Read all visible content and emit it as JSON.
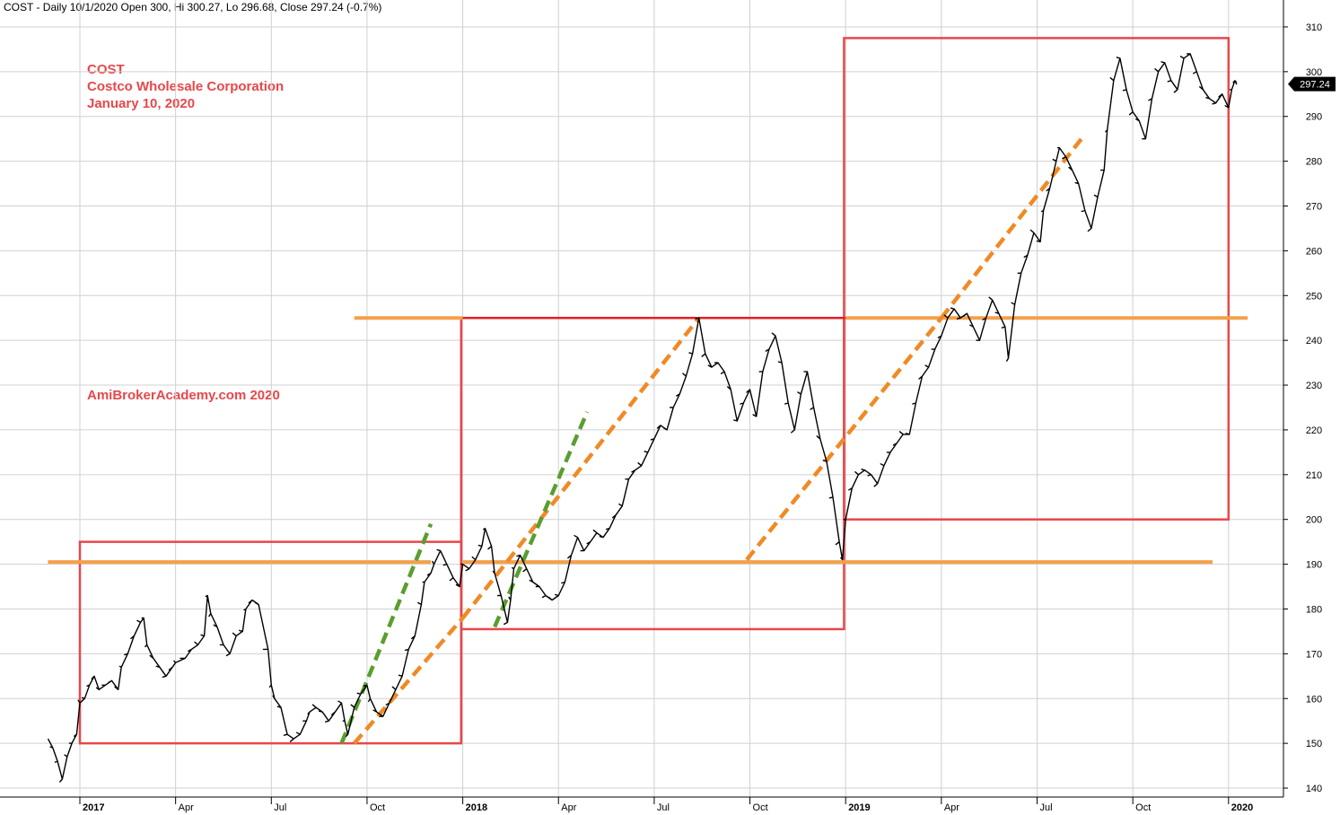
{
  "header": {
    "text": "COST - Daily 10/1/2020 Open 300, Hi 300.27, Lo 296.68, Close 297.24 (-0.7%)"
  },
  "annotations": {
    "ticker": "COST",
    "company": "Costco Wholesale Corporation",
    "date": "January 10, 2020",
    "watermark": "AmiBrokerAcademy.com 2020"
  },
  "colors": {
    "price": "#000000",
    "box": "#e8474a",
    "support_resistance": "#f5a04a",
    "trend_orange": "#f08a24",
    "trend_green": "#5a9e2e",
    "grid": "#d0d0d0",
    "badge": "#000000"
  },
  "chart_data": {
    "type": "line",
    "title": "",
    "xlabel": "",
    "ylabel": "",
    "ylim": [
      138,
      314
    ],
    "xlim": [
      -1.0,
      36.6
    ],
    "y_ticks": [
      140,
      150,
      160,
      170,
      180,
      190,
      200,
      210,
      220,
      230,
      240,
      250,
      260,
      270,
      280,
      290,
      300,
      310
    ],
    "x_ticks": [
      {
        "label": "2017",
        "x": 0,
        "year": true
      },
      {
        "label": "Apr",
        "x": 3,
        "year": false
      },
      {
        "label": "Jul",
        "x": 6,
        "year": false
      },
      {
        "label": "Oct",
        "x": 9,
        "year": false
      },
      {
        "label": "2018",
        "x": 12,
        "year": true
      },
      {
        "label": "Apr",
        "x": 15,
        "year": false
      },
      {
        "label": "Jul",
        "x": 18,
        "year": false
      },
      {
        "label": "Oct",
        "x": 21,
        "year": false
      },
      {
        "label": "2019",
        "x": 24,
        "year": true
      },
      {
        "label": "Apr",
        "x": 27,
        "year": false
      },
      {
        "label": "Jul",
        "x": 30,
        "year": false
      },
      {
        "label": "Oct",
        "x": 33,
        "year": false
      },
      {
        "label": "2020",
        "x": 36,
        "year": true
      }
    ],
    "grid": true,
    "last_price_label": "297.24",
    "last_price": 297.24,
    "series": [
      {
        "name": "",
        "points": [
          [
            -1.0,
            151
          ],
          [
            -0.85,
            149
          ],
          [
            -0.7,
            146
          ],
          [
            -0.55,
            142
          ],
          [
            -0.4,
            147
          ],
          [
            -0.25,
            150
          ],
          [
            -0.1,
            152
          ],
          [
            0.0,
            159
          ],
          [
            0.15,
            160
          ],
          [
            0.3,
            163
          ],
          [
            0.45,
            165
          ],
          [
            0.6,
            162
          ],
          [
            0.8,
            163
          ],
          [
            1.0,
            164
          ],
          [
            1.2,
            162
          ],
          [
            1.3,
            167
          ],
          [
            1.5,
            170
          ],
          [
            1.7,
            174
          ],
          [
            1.9,
            177
          ],
          [
            2.0,
            178
          ],
          [
            2.1,
            172
          ],
          [
            2.3,
            169
          ],
          [
            2.5,
            167
          ],
          [
            2.7,
            165
          ],
          [
            2.9,
            167
          ],
          [
            3.0,
            168
          ],
          [
            3.3,
            169
          ],
          [
            3.5,
            171
          ],
          [
            3.7,
            172
          ],
          [
            3.9,
            174
          ],
          [
            4.0,
            183
          ],
          [
            4.1,
            179
          ],
          [
            4.3,
            176
          ],
          [
            4.5,
            172
          ],
          [
            4.7,
            170
          ],
          [
            4.9,
            174
          ],
          [
            5.1,
            175
          ],
          [
            5.2,
            180
          ],
          [
            5.4,
            182
          ],
          [
            5.6,
            181
          ],
          [
            5.9,
            171
          ],
          [
            6.0,
            163
          ],
          [
            6.1,
            160
          ],
          [
            6.3,
            158
          ],
          [
            6.5,
            152
          ],
          [
            6.7,
            151
          ],
          [
            6.9,
            152
          ],
          [
            7.1,
            155
          ],
          [
            7.2,
            157
          ],
          [
            7.4,
            158
          ],
          [
            7.6,
            157
          ],
          [
            7.8,
            155
          ],
          [
            8.0,
            157
          ],
          [
            8.2,
            159
          ],
          [
            8.3,
            155
          ],
          [
            8.4,
            152
          ],
          [
            8.6,
            158
          ],
          [
            8.8,
            161
          ],
          [
            9.0,
            163
          ],
          [
            9.1,
            160
          ],
          [
            9.3,
            157
          ],
          [
            9.5,
            156
          ],
          [
            9.7,
            159
          ],
          [
            9.9,
            162
          ],
          [
            10.1,
            165
          ],
          [
            10.3,
            171
          ],
          [
            10.5,
            174
          ],
          [
            10.7,
            181
          ],
          [
            10.8,
            186
          ],
          [
            11.0,
            188
          ],
          [
            11.1,
            190
          ],
          [
            11.3,
            193
          ],
          [
            11.5,
            190
          ],
          [
            11.7,
            187
          ],
          [
            11.9,
            185
          ],
          [
            12.0,
            190
          ],
          [
            12.2,
            189
          ],
          [
            12.4,
            191
          ],
          [
            12.6,
            194
          ],
          [
            12.7,
            198
          ],
          [
            12.9,
            194
          ],
          [
            13.0,
            188
          ],
          [
            13.2,
            183
          ],
          [
            13.4,
            177
          ],
          [
            13.5,
            182
          ],
          [
            13.6,
            189
          ],
          [
            13.8,
            192
          ],
          [
            14.0,
            189
          ],
          [
            14.2,
            186
          ],
          [
            14.4,
            185
          ],
          [
            14.6,
            183
          ],
          [
            14.8,
            182
          ],
          [
            15.0,
            183
          ],
          [
            15.2,
            186
          ],
          [
            15.4,
            192
          ],
          [
            15.6,
            196
          ],
          [
            15.8,
            193
          ],
          [
            16.0,
            195
          ],
          [
            16.2,
            197
          ],
          [
            16.4,
            196
          ],
          [
            16.6,
            198
          ],
          [
            16.8,
            201
          ],
          [
            17.0,
            203
          ],
          [
            17.2,
            209
          ],
          [
            17.4,
            211
          ],
          [
            17.6,
            212
          ],
          [
            17.8,
            215
          ],
          [
            18.0,
            218
          ],
          [
            18.2,
            221
          ],
          [
            18.4,
            220
          ],
          [
            18.6,
            225
          ],
          [
            18.8,
            228
          ],
          [
            19.0,
            232
          ],
          [
            19.2,
            237
          ],
          [
            19.4,
            245
          ],
          [
            19.6,
            237
          ],
          [
            19.8,
            234
          ],
          [
            20.0,
            235
          ],
          [
            20.2,
            233
          ],
          [
            20.4,
            229
          ],
          [
            20.6,
            222
          ],
          [
            20.8,
            226
          ],
          [
            21.0,
            229
          ],
          [
            21.2,
            223
          ],
          [
            21.4,
            233
          ],
          [
            21.6,
            238
          ],
          [
            21.8,
            241
          ],
          [
            22.0,
            235
          ],
          [
            22.2,
            226
          ],
          [
            22.4,
            220
          ],
          [
            22.6,
            228
          ],
          [
            22.8,
            233
          ],
          [
            23.0,
            225
          ],
          [
            23.2,
            218
          ],
          [
            23.4,
            213
          ],
          [
            23.6,
            205
          ],
          [
            23.8,
            195
          ],
          [
            23.9,
            191
          ],
          [
            24.0,
            200
          ],
          [
            24.2,
            207
          ],
          [
            24.4,
            210
          ],
          [
            24.6,
            211
          ],
          [
            24.8,
            210
          ],
          [
            25.0,
            208
          ],
          [
            25.2,
            212
          ],
          [
            25.4,
            215
          ],
          [
            25.6,
            217
          ],
          [
            25.8,
            219
          ],
          [
            26.0,
            219
          ],
          [
            26.2,
            226
          ],
          [
            26.4,
            232
          ],
          [
            26.6,
            234
          ],
          [
            26.8,
            238
          ],
          [
            27.0,
            241
          ],
          [
            27.2,
            245
          ],
          [
            27.4,
            247
          ],
          [
            27.6,
            245
          ],
          [
            27.8,
            246
          ],
          [
            28.0,
            243
          ],
          [
            28.2,
            240
          ],
          [
            28.4,
            245
          ],
          [
            28.6,
            249
          ],
          [
            28.8,
            246
          ],
          [
            29.0,
            243
          ],
          [
            29.1,
            236
          ],
          [
            29.3,
            248
          ],
          [
            29.5,
            255
          ],
          [
            29.7,
            259
          ],
          [
            29.9,
            264
          ],
          [
            30.1,
            262
          ],
          [
            30.2,
            269
          ],
          [
            30.4,
            274
          ],
          [
            30.6,
            280
          ],
          [
            30.7,
            283
          ],
          [
            30.9,
            281
          ],
          [
            31.1,
            278
          ],
          [
            31.3,
            275
          ],
          [
            31.5,
            269
          ],
          [
            31.7,
            265
          ],
          [
            31.9,
            272
          ],
          [
            32.1,
            278
          ],
          [
            32.2,
            287
          ],
          [
            32.4,
            298
          ],
          [
            32.6,
            303
          ],
          [
            32.8,
            296
          ],
          [
            33.0,
            291
          ],
          [
            33.2,
            289
          ],
          [
            33.4,
            285
          ],
          [
            33.6,
            294
          ],
          [
            33.8,
            300
          ],
          [
            34.0,
            302
          ],
          [
            34.2,
            298
          ],
          [
            34.4,
            296
          ],
          [
            34.6,
            303
          ],
          [
            34.8,
            304
          ],
          [
            35.0,
            300
          ],
          [
            35.2,
            296
          ],
          [
            35.4,
            294
          ],
          [
            35.6,
            293
          ],
          [
            35.8,
            295
          ],
          [
            36.0,
            292
          ],
          [
            36.1,
            296
          ],
          [
            36.2,
            298
          ],
          [
            36.25,
            297.24
          ]
        ]
      }
    ],
    "horizontal_lines": [
      {
        "y": 190.5,
        "x": [
          -1.0,
          11.0
        ]
      },
      {
        "y": 190.5,
        "x": [
          12.0,
          35.5
        ]
      },
      {
        "y": 245,
        "x": [
          8.6,
          12.0
        ]
      },
      {
        "y": 245,
        "x": [
          24.0,
          36.6
        ]
      },
      {
        "y": 245,
        "x": [
          12.0,
          24.0
        ],
        "resistance": true
      }
    ],
    "boxes": [
      {
        "x": [
          0.0,
          11.95
        ],
        "y": [
          150,
          195
        ]
      },
      {
        "x": [
          11.95,
          23.95
        ],
        "y": [
          175.5,
          245
        ]
      },
      {
        "x": [
          23.95,
          36.0
        ],
        "y": [
          200,
          307.5
        ]
      }
    ],
    "trendlines": [
      {
        "color": "green",
        "from": [
          8.2,
          150
        ],
        "to": [
          11.0,
          199
        ]
      },
      {
        "color": "orange",
        "from": [
          8.6,
          150
        ],
        "to": [
          12.0,
          178
        ]
      },
      {
        "color": "orange",
        "from": [
          12.0,
          178
        ],
        "to": [
          19.4,
          245
        ]
      },
      {
        "color": "green",
        "from": [
          13.0,
          176
        ],
        "to": [
          15.9,
          224
        ]
      },
      {
        "color": "orange",
        "from": [
          20.9,
          191
        ],
        "to": [
          27.0,
          245
        ]
      },
      {
        "color": "orange",
        "from": [
          27.0,
          245
        ],
        "to": [
          31.5,
          286
        ]
      }
    ]
  }
}
